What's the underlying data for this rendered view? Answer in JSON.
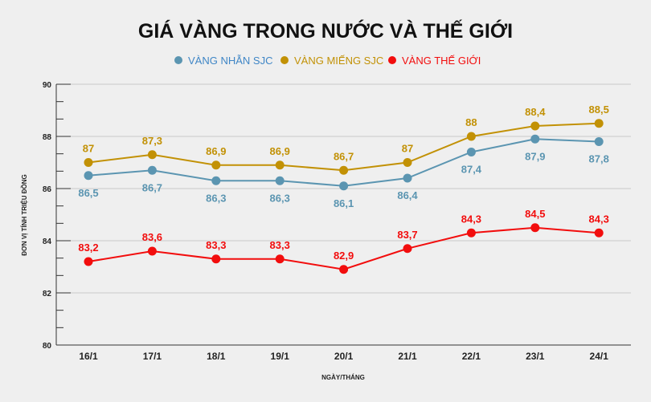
{
  "chart_data": {
    "type": "line",
    "title": "GIÁ VÀNG TRONG NƯỚC VÀ THẾ GIỚI",
    "xlabel": "NGÀY/THÁNG",
    "ylabel": "ĐƠN VỊ TÍNH TRIỆU ĐỒNG",
    "categories": [
      "16/1",
      "17/1",
      "18/1",
      "19/1",
      "20/1",
      "21/1",
      "22/1",
      "23/1",
      "24/1"
    ],
    "ylim": [
      80,
      90
    ],
    "yticks": [
      "80",
      "82",
      "84",
      "86",
      "88",
      "90"
    ],
    "grid": true,
    "legend": "top-center",
    "series": [
      {
        "name": "VÀNG NHẪN SJC",
        "color": "#5b95b1",
        "labels_position": "below",
        "values": [
          86.5,
          86.7,
          86.3,
          86.3,
          86.1,
          86.4,
          87.4,
          87.9,
          87.8
        ],
        "labels": [
          "86,5",
          "86,7",
          "86,3",
          "86,3",
          "86,1",
          "86,4",
          "87,4",
          "87,9",
          "87,8"
        ]
      },
      {
        "name": "VÀNG MIẾNG SJC",
        "color": "#c29105",
        "labels_position": "above",
        "values": [
          87,
          87.3,
          86.9,
          86.9,
          86.7,
          87,
          88,
          88.4,
          88.5
        ],
        "labels": [
          "87",
          "87,3",
          "86,9",
          "86,9",
          "86,7",
          "87",
          "88",
          "88,4",
          "88,5"
        ]
      },
      {
        "name": "VÀNG THẾ GIỚI",
        "color": "#f20d0d",
        "labels_position": "above",
        "values": [
          83.2,
          83.6,
          83.3,
          83.3,
          82.9,
          83.7,
          84.3,
          84.5,
          84.3
        ],
        "labels": [
          "83,2",
          "83,6",
          "83,3",
          "83,3",
          "82,9",
          "83,7",
          "84,3",
          "84,5",
          "84,3"
        ]
      }
    ]
  }
}
